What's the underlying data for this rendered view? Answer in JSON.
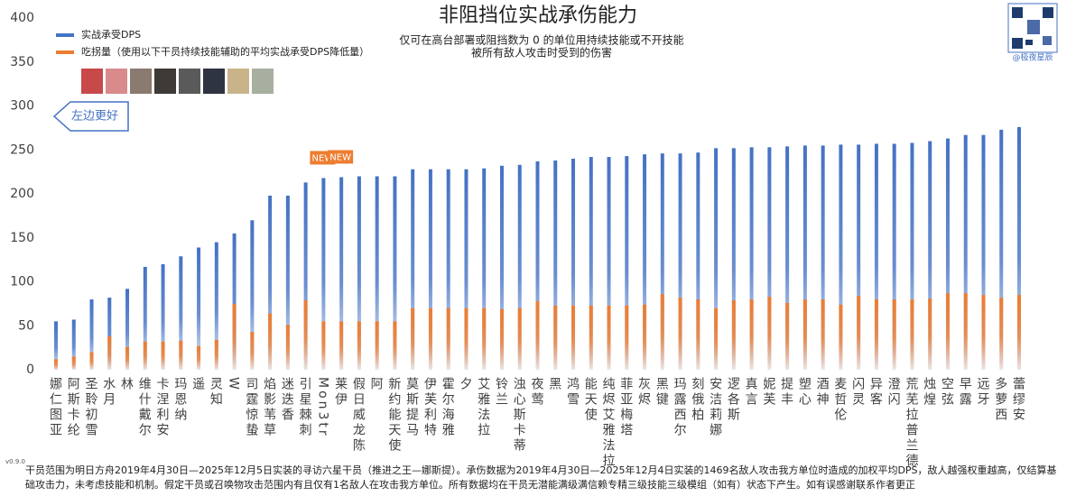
{
  "chart_data": {
    "type": "bar",
    "title": "非阻挡位实战承伤能力",
    "subtitle": [
      "仅可在高台部署或阻挡数为 0 的单位用持续技能或不开技能",
      "被所有敌人攻击时受到的伤害"
    ],
    "categories": [
      "娜仁图亚",
      "阿斯卡纶",
      "圣聆初雪",
      "水月",
      "林",
      "维什戴尔",
      "卡涅利安",
      "玛恩纳",
      "遥",
      "灵知",
      "W",
      "司霆惊蛰",
      "焰影苇草",
      "迷迭香",
      "引星棘刺",
      "Mon3tr",
      "莱伊",
      "假日威龙陈",
      "阿",
      "新约能天使",
      "莫斯提马",
      "伊芙利特",
      "霍尔海雅",
      "夕",
      "艾雅法拉",
      "铃兰",
      "浊心斯卡蒂",
      "夜莺",
      "黑",
      "鸿雪",
      "能天使",
      "纯烬艾雅法拉",
      "菲亚梅塔",
      "灰烬",
      "黑键",
      "玛露西尔",
      "刻俄柏",
      "安洁莉娜",
      "逻各斯",
      "真言",
      "妮芙",
      "提丰",
      "塑心",
      "酒神",
      "麦哲伦",
      "闪灵",
      "异客",
      "澄闪",
      "荒芜拉普兰德",
      "烛煌",
      "空弦",
      "早露",
      "远牙",
      "多萝西",
      "蕾缪安"
    ],
    "series": [
      {
        "name": "实战承受DPS",
        "color": "#4472c4",
        "values": [
          55,
          57,
          80,
          82,
          92,
          117,
          120,
          129,
          139,
          145,
          155,
          170,
          198,
          198,
          213,
          218,
          219,
          220,
          220,
          220,
          228,
          228,
          228,
          228,
          229,
          232,
          233,
          237,
          238,
          240,
          242,
          242,
          243,
          245,
          246,
          246,
          247,
          252,
          252,
          253,
          253,
          254,
          255,
          255,
          256,
          256,
          257,
          257,
          258,
          260,
          263,
          267,
          267,
          273,
          276
        ]
      },
      {
        "name": "吃拐量（使用以下干员持续技能辅助的平均实战承受DPS降低量）",
        "color": "#ed7d31",
        "values": [
          12,
          15,
          20,
          38,
          26,
          32,
          32,
          33,
          27,
          34,
          75,
          43,
          64,
          51,
          79,
          55,
          55,
          55,
          55,
          55,
          70,
          70,
          70,
          70,
          70,
          69,
          70,
          78,
          73,
          73,
          73,
          73,
          73,
          74,
          86,
          82,
          80,
          70,
          79,
          80,
          83,
          76,
          80,
          80,
          74,
          84,
          80,
          80,
          80,
          81,
          87,
          87,
          85,
          82,
          85
        ]
      }
    ],
    "ylim": [
      0,
      400
    ],
    "yticks": [
      0,
      50,
      100,
      150,
      200,
      250,
      300,
      350,
      400
    ],
    "grid": false,
    "annotations": [
      {
        "text": "NEW",
        "category": "Mon3tr"
      },
      {
        "text": "NEW",
        "category": "莱伊"
      }
    ],
    "hint": "左边更好",
    "watermark": "@极夜星辰",
    "version": "v0.9.0",
    "footnote": "干员范围为明日方舟2019年4月30日—2025年12月5日实装的寻访六星干员（推进之王—娜斯提）。承伤数据为2019年4月30日—2025年12月4日实装的1469名敌人攻击我方单位时造成的加权平均DPS，敌人越强权重越高，仅结算基础攻击力，未考虑技能和机制。假定干员或召唤物攻击范围内有且仅有1名敌人在攻击我方单位。所有数据均在干员无潜能满级满信赖专精三级技能三级模组（如有）状态下产生。如有误感谢联系作者更正"
  }
}
